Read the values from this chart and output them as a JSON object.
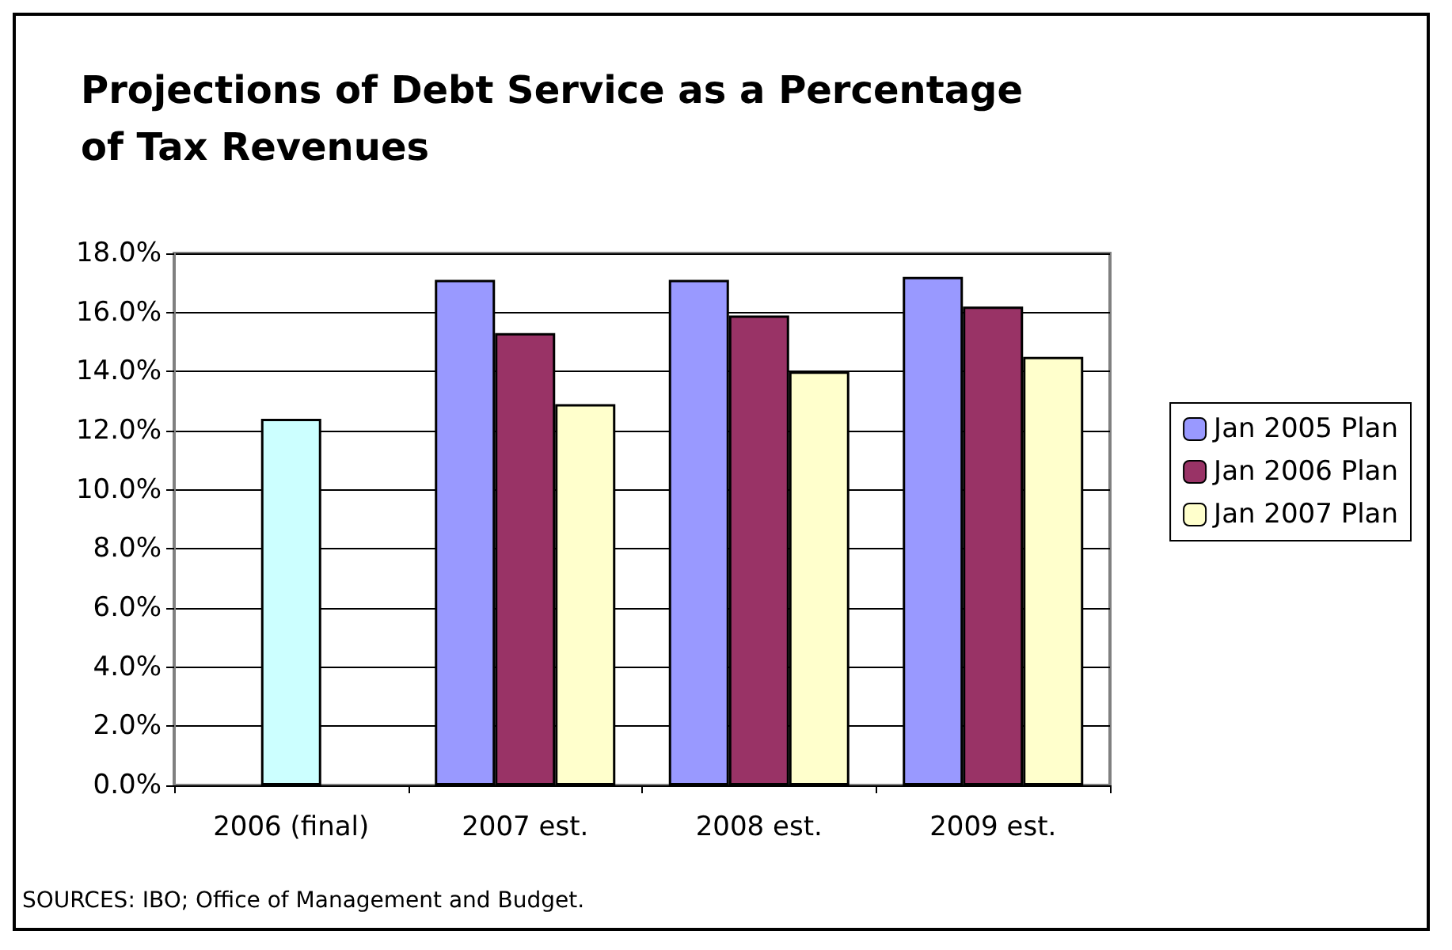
{
  "chart_data": {
    "type": "bar",
    "title": "Projections of Debt Service as a Percentage\nof Tax Revenues",
    "categories": [
      "2006 (final)",
      "2007 est.",
      "2008 est.",
      "2009 est."
    ],
    "series": [
      {
        "name": "Jan 2005 Plan",
        "color": "#9999ff",
        "values": [
          null,
          17.1,
          17.1,
          17.2
        ]
      },
      {
        "name": "Jan 2006 Plan",
        "color": "#993366",
        "colors": [
          "#ccffff",
          "#993366",
          "#993366",
          "#993366"
        ],
        "values": [
          12.4,
          15.3,
          15.9,
          16.2
        ]
      },
      {
        "name": "Jan 2007 Plan",
        "color": "#ffffcc",
        "values": [
          null,
          12.9,
          14.0,
          14.5
        ]
      }
    ],
    "ylim": [
      0,
      18
    ],
    "yticks": [
      {
        "value": 0,
        "label": "0.0%"
      },
      {
        "value": 2,
        "label": "2.0%"
      },
      {
        "value": 4,
        "label": "4.0%"
      },
      {
        "value": 6,
        "label": "6.0%"
      },
      {
        "value": 8,
        "label": "8.0%"
      },
      {
        "value": 10,
        "label": "10.0%"
      },
      {
        "value": 12,
        "label": "12.0%"
      },
      {
        "value": 14,
        "label": "14.0%"
      },
      {
        "value": 16,
        "label": "16.0%"
      },
      {
        "value": 18,
        "label": "18.0%"
      }
    ],
    "grid": "y",
    "legend": "right",
    "annotations": [
      "SOURCES: IBO; Office of Management and Budget."
    ]
  }
}
